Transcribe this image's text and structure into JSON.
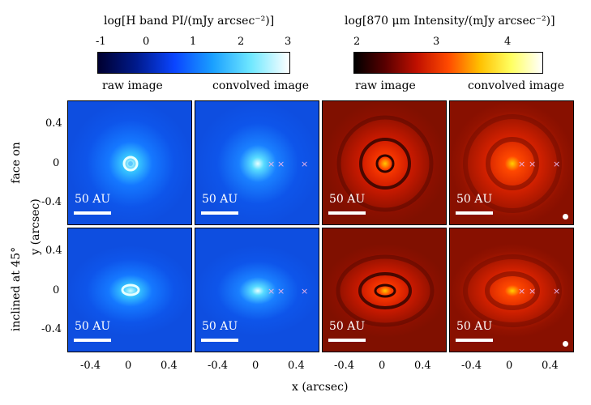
{
  "colorbars": {
    "h_band": {
      "title": "log[H band PI/(mJy arcsec⁻²)]",
      "ticks": [
        "-1",
        "0",
        "1",
        "2",
        "3"
      ]
    },
    "mm": {
      "title": "log[870 μm Intensity/(mJy arcsec⁻²)]",
      "ticks": [
        "2",
        "3",
        "4"
      ]
    }
  },
  "column_titles": [
    "raw image",
    "convolved image",
    "raw image",
    "convolved image"
  ],
  "row_labels": [
    "face on",
    "inclined at 45°"
  ],
  "y_axis": {
    "label": "y (arcsec)",
    "ticks": [
      "0.4",
      "0",
      "-0.4"
    ]
  },
  "x_axis": {
    "label": "x (arcsec)",
    "ticks": [
      "-0.4",
      "0",
      "0.4"
    ]
  },
  "scale_bar_label": "50 AU",
  "colors": {
    "h_background": "#0f4fe8",
    "h_core": "#c8fdff",
    "mm_background": "#901000",
    "mm_core": "#ffcf00",
    "marker": "#e8b4e8"
  }
}
